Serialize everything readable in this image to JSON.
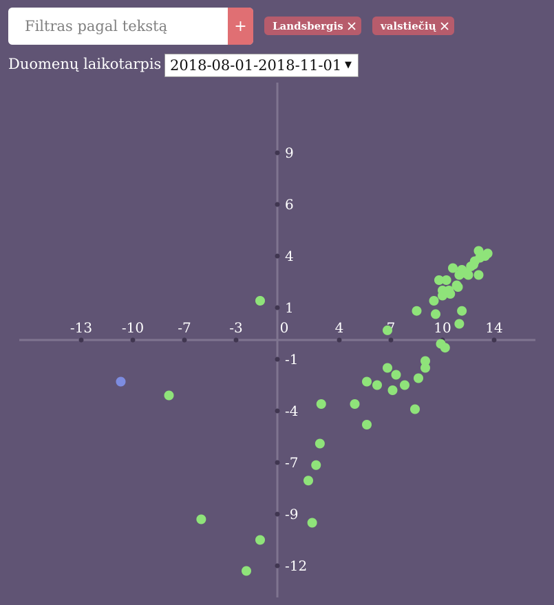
{
  "search": {
    "placeholder": "Filtras pagal tekstą",
    "add_label": "+"
  },
  "tags": [
    {
      "label": "Landsbergis"
    },
    {
      "label": "valstiečių"
    }
  ],
  "period": {
    "label": "Duomenų laikotarpis",
    "selected": "2018-08-01-2018-11-01",
    "arrow": "▼"
  },
  "colors": {
    "background": "#605474",
    "axis": "#7f7590",
    "point_green": "#8fe37a",
    "point_blue": "#7d8ce0",
    "tag": "#b75c6c",
    "add_button": "#e06f73"
  },
  "chart_data": {
    "type": "scatter",
    "x_ticks": [
      -13,
      -10,
      -7,
      -3,
      0,
      4,
      7,
      10,
      14
    ],
    "y_ticks": [
      9,
      6,
      4,
      1,
      -1,
      -4,
      -7,
      -9,
      -12
    ],
    "series": [
      {
        "color": "#8fe37a",
        "points": [
          [
            -1.6,
            1.4
          ],
          [
            6.8,
            0.3
          ],
          [
            8.5,
            0.9
          ],
          [
            9.5,
            1.4
          ],
          [
            9.8,
            2.6
          ],
          [
            10.0,
            1.7
          ],
          [
            10.3,
            2.6
          ],
          [
            10.5,
            2.0
          ],
          [
            10.8,
            3.3
          ],
          [
            11.1,
            2.3
          ],
          [
            11.3,
            2.9
          ],
          [
            11.5,
            3.2
          ],
          [
            12.0,
            2.9
          ],
          [
            12.2,
            3.4
          ],
          [
            12.5,
            3.7
          ],
          [
            12.8,
            4.2
          ],
          [
            12.9,
            3.9
          ],
          [
            13.3,
            4.0
          ],
          [
            13.5,
            4.1
          ],
          [
            12.8,
            2.9
          ],
          [
            12.4,
            3.5
          ],
          [
            11.8,
            3.0
          ],
          [
            11.2,
            2.2
          ],
          [
            10.6,
            1.8
          ],
          [
            10.0,
            2.0
          ],
          [
            9.6,
            0.8
          ],
          [
            11.5,
            0.9
          ],
          [
            11.3,
            0.5
          ],
          [
            9.9,
            -0.2
          ],
          [
            10.2,
            -0.4
          ],
          [
            9.0,
            -1.1
          ],
          [
            9.0,
            -1.5
          ],
          [
            8.6,
            -2.1
          ],
          [
            8.4,
            -3.9
          ],
          [
            7.3,
            -1.9
          ],
          [
            7.8,
            -2.5
          ],
          [
            6.8,
            -1.5
          ],
          [
            7.1,
            -2.8
          ],
          [
            6.2,
            -2.5
          ],
          [
            5.6,
            -2.3
          ],
          [
            4.9,
            -3.6
          ],
          [
            5.6,
            -4.8
          ],
          [
            2.6,
            -3.6
          ],
          [
            2.5,
            -5.9
          ],
          [
            2.2,
            -7.1
          ],
          [
            1.6,
            -7.7
          ],
          [
            1.9,
            -9.5
          ],
          [
            -1.6,
            -10.5
          ],
          [
            -2.4,
            -12.3
          ],
          [
            -5.7,
            -9.3
          ],
          [
            -7.9,
            -3.1
          ]
        ]
      },
      {
        "color": "#7d8ce0",
        "points": [
          [
            -10.7,
            -2.3
          ]
        ]
      }
    ]
  }
}
